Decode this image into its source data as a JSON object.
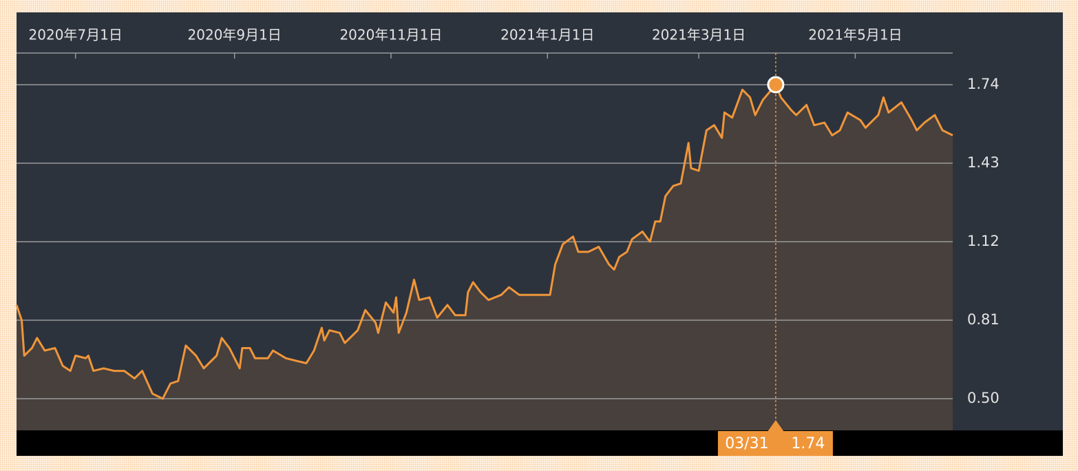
{
  "chart_data": {
    "type": "area",
    "color": "#f0963a",
    "fill": "#47403d",
    "grid": true,
    "x": [
      "2020-06-08",
      "2020-06-10",
      "2020-06-11",
      "2020-06-14",
      "2020-06-16",
      "2020-06-19",
      "2020-06-23",
      "2020-06-26",
      "2020-06-29",
      "2020-07-01",
      "2020-07-05",
      "2020-07-06",
      "2020-07-08",
      "2020-07-12",
      "2020-07-16",
      "2020-07-20",
      "2020-07-24",
      "2020-07-27",
      "2020-07-31",
      "2020-08-04",
      "2020-08-07",
      "2020-08-10",
      "2020-08-13",
      "2020-08-17",
      "2020-08-20",
      "2020-08-25",
      "2020-08-27",
      "2020-08-30",
      "2020-09-03",
      "2020-09-04",
      "2020-09-07",
      "2020-09-09",
      "2020-09-14",
      "2020-09-16",
      "2020-09-21",
      "2020-09-25",
      "2020-09-29",
      "2020-10-02",
      "2020-10-05",
      "2020-10-06",
      "2020-10-08",
      "2020-10-12",
      "2020-10-14",
      "2020-10-19",
      "2020-10-22",
      "2020-10-26",
      "2020-10-27",
      "2020-10-30",
      "2020-11-02",
      "2020-11-03",
      "2020-11-04",
      "2020-11-07",
      "2020-11-10",
      "2020-11-12",
      "2020-11-16",
      "2020-11-19",
      "2020-11-23",
      "2020-11-26",
      "2020-11-30",
      "2020-12-01",
      "2020-12-03",
      "2020-12-06",
      "2020-12-09",
      "2020-12-14",
      "2020-12-17",
      "2020-12-21",
      "2020-12-26",
      "2020-12-30",
      "2021-01-02",
      "2021-01-04",
      "2021-01-07",
      "2021-01-11",
      "2021-01-13",
      "2021-01-17",
      "2021-01-21",
      "2021-01-25",
      "2021-01-27",
      "2021-01-29",
      "2021-02-01",
      "2021-02-03",
      "2021-02-07",
      "2021-02-10",
      "2021-02-12",
      "2021-02-14",
      "2021-02-16",
      "2021-02-19",
      "2021-02-22",
      "2021-02-25",
      "2021-02-26",
      "2021-03-01",
      "2021-03-04",
      "2021-03-07",
      "2021-03-10",
      "2021-03-11",
      "2021-03-14",
      "2021-03-18",
      "2021-03-21",
      "2021-03-23",
      "2021-03-26",
      "2021-03-31",
      "2021-04-02",
      "2021-04-06",
      "2021-04-08",
      "2021-04-12",
      "2021-04-15",
      "2021-04-19",
      "2021-04-22",
      "2021-04-25",
      "2021-04-28",
      "2021-05-03",
      "2021-05-05",
      "2021-05-10",
      "2021-05-12",
      "2021-05-14",
      "2021-05-19",
      "2021-05-23",
      "2021-05-25",
      "2021-05-28",
      "2021-06-01",
      "2021-06-04",
      "2021-06-08"
    ],
    "values": [
      0.87,
      0.81,
      0.67,
      0.7,
      0.74,
      0.69,
      0.7,
      0.63,
      0.61,
      0.67,
      0.66,
      0.67,
      0.61,
      0.62,
      0.61,
      0.61,
      0.58,
      0.61,
      0.52,
      0.5,
      0.56,
      0.57,
      0.71,
      0.67,
      0.62,
      0.67,
      0.74,
      0.7,
      0.62,
      0.7,
      0.7,
      0.66,
      0.66,
      0.69,
      0.66,
      0.65,
      0.64,
      0.69,
      0.78,
      0.73,
      0.77,
      0.76,
      0.72,
      0.77,
      0.85,
      0.8,
      0.76,
      0.88,
      0.84,
      0.9,
      0.76,
      0.84,
      0.97,
      0.89,
      0.9,
      0.82,
      0.87,
      0.83,
      0.83,
      0.92,
      0.96,
      0.92,
      0.89,
      0.91,
      0.94,
      0.91,
      0.91,
      0.91,
      0.91,
      1.03,
      1.11,
      1.14,
      1.08,
      1.08,
      1.1,
      1.03,
      1.01,
      1.06,
      1.08,
      1.13,
      1.16,
      1.12,
      1.2,
      1.2,
      1.3,
      1.34,
      1.35,
      1.51,
      1.41,
      1.4,
      1.56,
      1.58,
      1.53,
      1.63,
      1.61,
      1.72,
      1.69,
      1.62,
      1.68,
      1.74,
      1.69,
      1.64,
      1.62,
      1.66,
      1.58,
      1.59,
      1.54,
      1.56,
      1.63,
      1.6,
      1.57,
      1.62,
      1.69,
      1.63,
      1.67,
      1.6,
      1.56,
      1.59,
      1.62,
      1.56,
      1.54
    ],
    "xlim": [
      "2020-06-08",
      "2021-06-08"
    ],
    "xticks": [
      {
        "value": "2020-07-01",
        "label": "2020年7月1日"
      },
      {
        "value": "2020-09-01",
        "label": "2020年9月1日"
      },
      {
        "value": "2020-11-01",
        "label": "2020年11月1日"
      },
      {
        "value": "2021-01-01",
        "label": "2021年1月1日"
      },
      {
        "value": "2021-03-01",
        "label": "2021年3月1日"
      },
      {
        "value": "2021-05-01",
        "label": "2021年5月1日"
      }
    ],
    "ylim": [
      0.375,
      1.865
    ],
    "yticks": [
      {
        "value": 0.5,
        "label": "0.50"
      },
      0.81,
      1.12,
      1.43,
      1.74
    ],
    "tooltip": {
      "x": "2021-03-31",
      "label": "03/31",
      "value": 1.74
    }
  }
}
